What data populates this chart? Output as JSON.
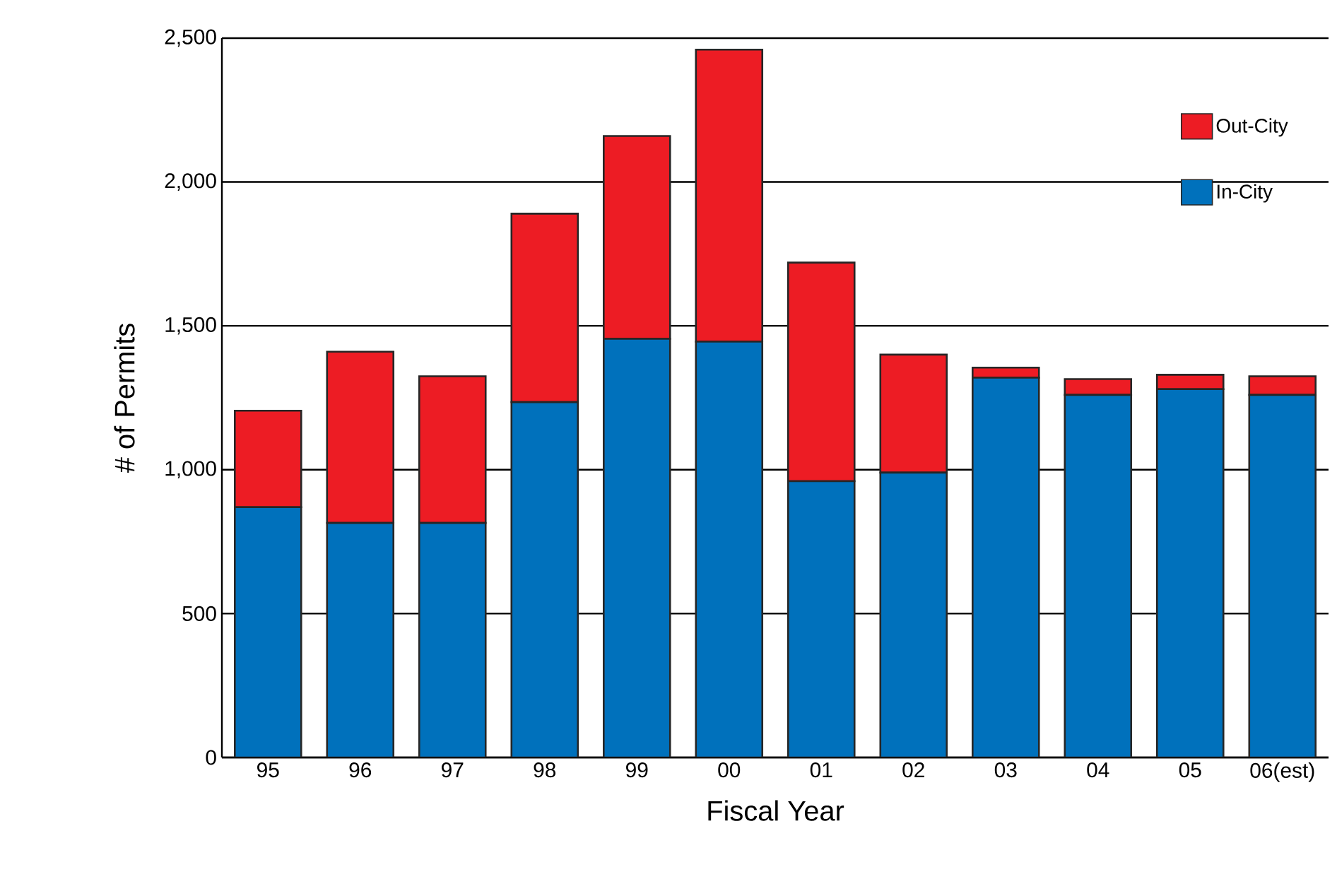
{
  "chart_data": {
    "type": "bar",
    "stacked": true,
    "xlabel": "Fiscal Year",
    "ylabel": "# of Permits",
    "categories": [
      "95",
      "96",
      "97",
      "98",
      "99",
      "00",
      "01",
      "02",
      "03",
      "04",
      "05",
      "06(est)"
    ],
    "series": [
      {
        "name": "In-City",
        "color": "#0071bc",
        "values": [
          870,
          815,
          815,
          1235,
          1455,
          1445,
          960,
          990,
          1320,
          1260,
          1280,
          1260
        ]
      },
      {
        "name": "Out-City",
        "color": "#ed1c24",
        "values": [
          335,
          595,
          510,
          655,
          705,
          1015,
          760,
          410,
          35,
          55,
          50,
          65
        ]
      }
    ],
    "ylim": [
      0,
      2500
    ],
    "yticks": [
      0,
      500,
      {
        "value": 1000,
        "label": "1,000"
      },
      {
        "value": 1500,
        "label": "1,500"
      },
      {
        "value": 2000,
        "label": "2,000"
      },
      {
        "value": 2500,
        "label": "2,500"
      }
    ],
    "grid": "y",
    "legend": "top right"
  }
}
